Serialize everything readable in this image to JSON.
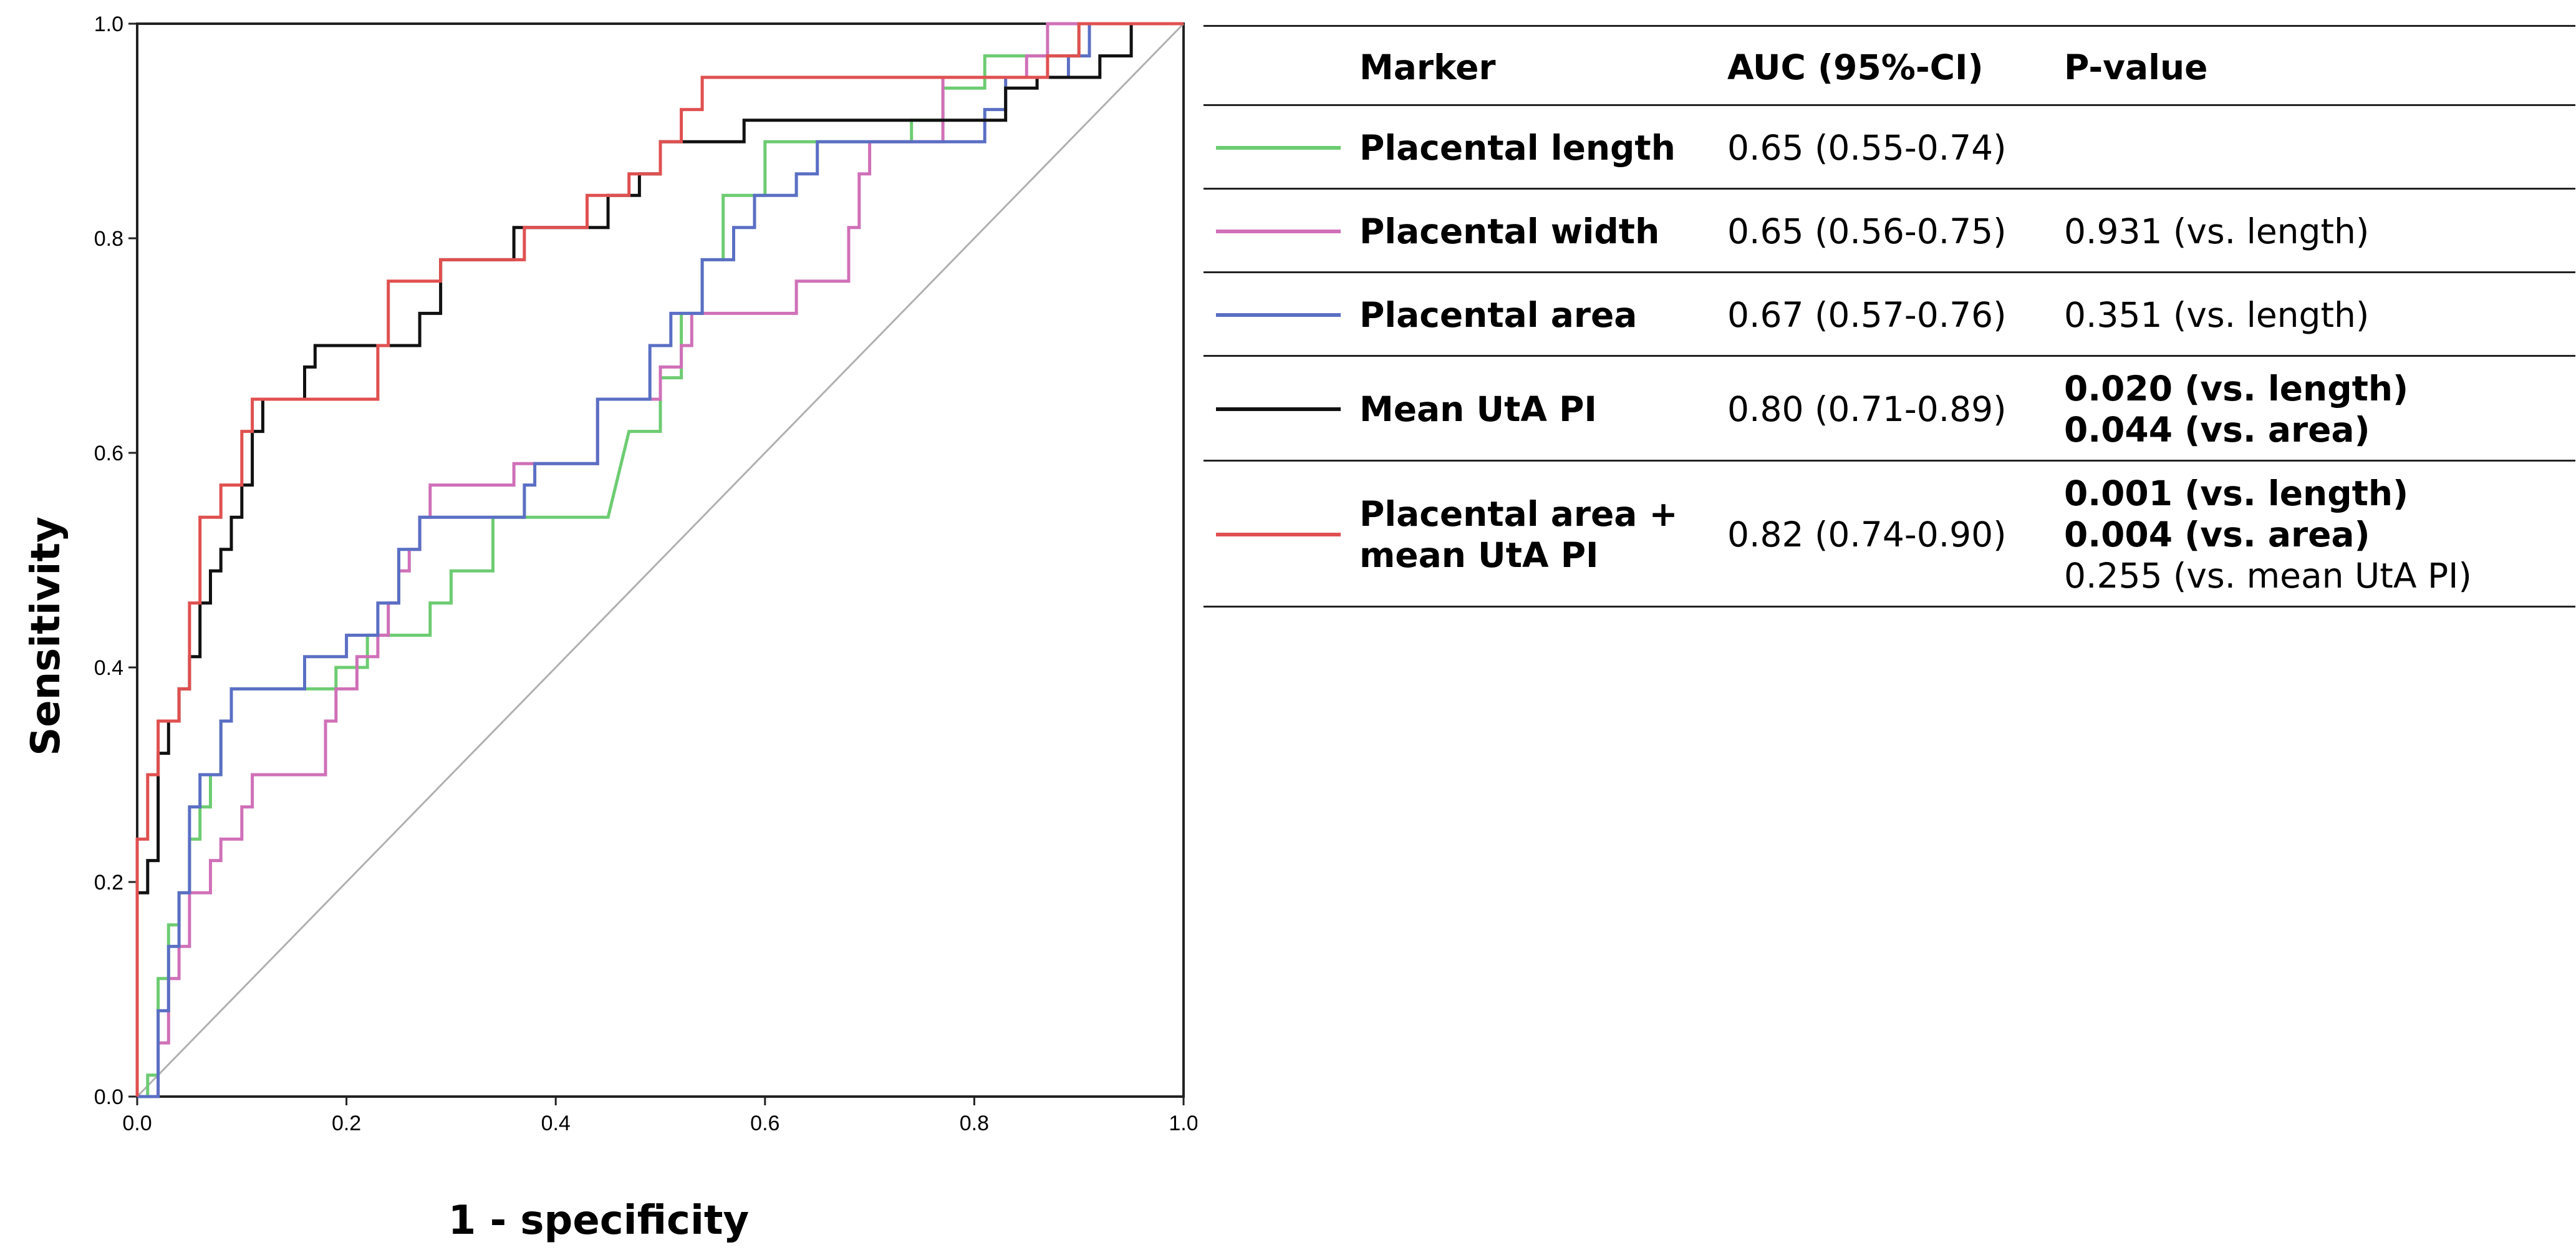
{
  "chart_data": {
    "type": "line",
    "title": "",
    "xlabel": "1 - specificity",
    "ylabel": "Sensitivity",
    "xlim": [
      0,
      1
    ],
    "ylim": [
      0,
      1
    ],
    "xticks": [
      "0.0",
      "0.2",
      "0.4",
      "0.6",
      "0.8",
      "1.0"
    ],
    "yticks": [
      "0.0",
      "0.2",
      "0.4",
      "0.6",
      "0.8",
      "1.0"
    ],
    "grid": false,
    "reference_line": {
      "x": [
        0,
        1
      ],
      "y": [
        0,
        1
      ],
      "color": "#b0b0b0"
    },
    "series": [
      {
        "name": "Placental length",
        "color": "#6dcc72",
        "points": [
          [
            0,
            0
          ],
          [
            0.01,
            0
          ],
          [
            0.01,
            0.02
          ],
          [
            0.02,
            0.02
          ],
          [
            0.02,
            0.11
          ],
          [
            0.03,
            0.11
          ],
          [
            0.03,
            0.16
          ],
          [
            0.04,
            0.16
          ],
          [
            0.04,
            0.19
          ],
          [
            0.05,
            0.19
          ],
          [
            0.05,
            0.24
          ],
          [
            0.06,
            0.24
          ],
          [
            0.06,
            0.27
          ],
          [
            0.07,
            0.27
          ],
          [
            0.07,
            0.3
          ],
          [
            0.08,
            0.3
          ],
          [
            0.08,
            0.35
          ],
          [
            0.09,
            0.35
          ],
          [
            0.09,
            0.38
          ],
          [
            0.19,
            0.38
          ],
          [
            0.19,
            0.4
          ],
          [
            0.22,
            0.4
          ],
          [
            0.22,
            0.43
          ],
          [
            0.28,
            0.43
          ],
          [
            0.28,
            0.46
          ],
          [
            0.3,
            0.46
          ],
          [
            0.3,
            0.49
          ],
          [
            0.34,
            0.49
          ],
          [
            0.34,
            0.54
          ],
          [
            0.45,
            0.54
          ],
          [
            0.47,
            0.62
          ],
          [
            0.5,
            0.62
          ],
          [
            0.5,
            0.67
          ],
          [
            0.52,
            0.67
          ],
          [
            0.52,
            0.73
          ],
          [
            0.54,
            0.73
          ],
          [
            0.54,
            0.78
          ],
          [
            0.56,
            0.78
          ],
          [
            0.56,
            0.84
          ],
          [
            0.6,
            0.84
          ],
          [
            0.6,
            0.89
          ],
          [
            0.74,
            0.89
          ],
          [
            0.74,
            0.91
          ],
          [
            0.77,
            0.91
          ],
          [
            0.77,
            0.94
          ],
          [
            0.81,
            0.94
          ],
          [
            0.81,
            0.97
          ],
          [
            0.9,
            0.97
          ],
          [
            0.9,
            1.0
          ],
          [
            1.0,
            1.0
          ]
        ]
      },
      {
        "name": "Placental width",
        "color": "#d070b8",
        "points": [
          [
            0,
            0
          ],
          [
            0.02,
            0
          ],
          [
            0.02,
            0.05
          ],
          [
            0.03,
            0.05
          ],
          [
            0.03,
            0.11
          ],
          [
            0.04,
            0.11
          ],
          [
            0.04,
            0.14
          ],
          [
            0.05,
            0.14
          ],
          [
            0.05,
            0.19
          ],
          [
            0.07,
            0.19
          ],
          [
            0.07,
            0.22
          ],
          [
            0.08,
            0.22
          ],
          [
            0.08,
            0.24
          ],
          [
            0.1,
            0.24
          ],
          [
            0.1,
            0.27
          ],
          [
            0.11,
            0.27
          ],
          [
            0.11,
            0.3
          ],
          [
            0.18,
            0.3
          ],
          [
            0.18,
            0.35
          ],
          [
            0.19,
            0.35
          ],
          [
            0.19,
            0.38
          ],
          [
            0.21,
            0.38
          ],
          [
            0.21,
            0.41
          ],
          [
            0.23,
            0.41
          ],
          [
            0.23,
            0.43
          ],
          [
            0.24,
            0.43
          ],
          [
            0.24,
            0.46
          ],
          [
            0.25,
            0.46
          ],
          [
            0.25,
            0.49
          ],
          [
            0.26,
            0.49
          ],
          [
            0.26,
            0.51
          ],
          [
            0.27,
            0.51
          ],
          [
            0.27,
            0.54
          ],
          [
            0.28,
            0.54
          ],
          [
            0.28,
            0.57
          ],
          [
            0.36,
            0.57
          ],
          [
            0.36,
            0.59
          ],
          [
            0.44,
            0.59
          ],
          [
            0.44,
            0.65
          ],
          [
            0.5,
            0.65
          ],
          [
            0.5,
            0.68
          ],
          [
            0.52,
            0.68
          ],
          [
            0.52,
            0.7
          ],
          [
            0.53,
            0.7
          ],
          [
            0.53,
            0.73
          ],
          [
            0.63,
            0.73
          ],
          [
            0.63,
            0.76
          ],
          [
            0.68,
            0.76
          ],
          [
            0.68,
            0.81
          ],
          [
            0.69,
            0.81
          ],
          [
            0.69,
            0.86
          ],
          [
            0.7,
            0.86
          ],
          [
            0.7,
            0.89
          ],
          [
            0.77,
            0.89
          ],
          [
            0.77,
            0.95
          ],
          [
            0.85,
            0.95
          ],
          [
            0.85,
            0.97
          ],
          [
            0.87,
            0.97
          ],
          [
            0.87,
            1.0
          ],
          [
            1.0,
            1.0
          ]
        ]
      },
      {
        "name": "Placental area",
        "color": "#5a6fc4",
        "points": [
          [
            0,
            0
          ],
          [
            0.02,
            0
          ],
          [
            0.02,
            0.08
          ],
          [
            0.03,
            0.08
          ],
          [
            0.03,
            0.14
          ],
          [
            0.04,
            0.14
          ],
          [
            0.04,
            0.19
          ],
          [
            0.05,
            0.19
          ],
          [
            0.05,
            0.27
          ],
          [
            0.06,
            0.27
          ],
          [
            0.06,
            0.3
          ],
          [
            0.08,
            0.3
          ],
          [
            0.08,
            0.35
          ],
          [
            0.09,
            0.35
          ],
          [
            0.09,
            0.38
          ],
          [
            0.16,
            0.38
          ],
          [
            0.16,
            0.41
          ],
          [
            0.2,
            0.41
          ],
          [
            0.2,
            0.43
          ],
          [
            0.23,
            0.43
          ],
          [
            0.23,
            0.46
          ],
          [
            0.25,
            0.46
          ],
          [
            0.25,
            0.51
          ],
          [
            0.27,
            0.51
          ],
          [
            0.27,
            0.54
          ],
          [
            0.37,
            0.54
          ],
          [
            0.37,
            0.57
          ],
          [
            0.38,
            0.57
          ],
          [
            0.38,
            0.59
          ],
          [
            0.44,
            0.59
          ],
          [
            0.44,
            0.65
          ],
          [
            0.49,
            0.65
          ],
          [
            0.49,
            0.7
          ],
          [
            0.51,
            0.7
          ],
          [
            0.51,
            0.73
          ],
          [
            0.54,
            0.73
          ],
          [
            0.54,
            0.78
          ],
          [
            0.57,
            0.78
          ],
          [
            0.57,
            0.81
          ],
          [
            0.59,
            0.81
          ],
          [
            0.59,
            0.84
          ],
          [
            0.63,
            0.84
          ],
          [
            0.63,
            0.86
          ],
          [
            0.65,
            0.86
          ],
          [
            0.65,
            0.89
          ],
          [
            0.81,
            0.89
          ],
          [
            0.81,
            0.92
          ],
          [
            0.83,
            0.92
          ],
          [
            0.83,
            0.95
          ],
          [
            0.89,
            0.95
          ],
          [
            0.89,
            0.97
          ],
          [
            0.91,
            0.97
          ],
          [
            0.91,
            1.0
          ],
          [
            1.0,
            1.0
          ]
        ]
      },
      {
        "name": "Mean UtA PI",
        "color": "#111111",
        "points": [
          [
            0,
            0
          ],
          [
            0,
            0.19
          ],
          [
            0.01,
            0.19
          ],
          [
            0.01,
            0.22
          ],
          [
            0.02,
            0.22
          ],
          [
            0.02,
            0.32
          ],
          [
            0.03,
            0.32
          ],
          [
            0.03,
            0.35
          ],
          [
            0.04,
            0.35
          ],
          [
            0.04,
            0.38
          ],
          [
            0.05,
            0.38
          ],
          [
            0.05,
            0.41
          ],
          [
            0.06,
            0.41
          ],
          [
            0.06,
            0.46
          ],
          [
            0.07,
            0.46
          ],
          [
            0.07,
            0.49
          ],
          [
            0.08,
            0.49
          ],
          [
            0.08,
            0.51
          ],
          [
            0.09,
            0.51
          ],
          [
            0.09,
            0.54
          ],
          [
            0.1,
            0.54
          ],
          [
            0.1,
            0.57
          ],
          [
            0.11,
            0.57
          ],
          [
            0.11,
            0.62
          ],
          [
            0.12,
            0.62
          ],
          [
            0.12,
            0.65
          ],
          [
            0.16,
            0.65
          ],
          [
            0.16,
            0.68
          ],
          [
            0.17,
            0.68
          ],
          [
            0.17,
            0.7
          ],
          [
            0.27,
            0.7
          ],
          [
            0.27,
            0.73
          ],
          [
            0.29,
            0.73
          ],
          [
            0.29,
            0.78
          ],
          [
            0.36,
            0.78
          ],
          [
            0.36,
            0.81
          ],
          [
            0.45,
            0.81
          ],
          [
            0.45,
            0.84
          ],
          [
            0.48,
            0.84
          ],
          [
            0.48,
            0.86
          ],
          [
            0.5,
            0.86
          ],
          [
            0.5,
            0.89
          ],
          [
            0.58,
            0.89
          ],
          [
            0.58,
            0.91
          ],
          [
            0.83,
            0.91
          ],
          [
            0.83,
            0.94
          ],
          [
            0.86,
            0.94
          ],
          [
            0.86,
            0.95
          ],
          [
            0.92,
            0.95
          ],
          [
            0.92,
            0.97
          ],
          [
            0.95,
            0.97
          ],
          [
            0.95,
            1.0
          ],
          [
            1.0,
            1.0
          ]
        ]
      },
      {
        "name": "Placental area + mean UtA PI",
        "color": "#e05050",
        "points": [
          [
            0,
            0
          ],
          [
            0,
            0.24
          ],
          [
            0.01,
            0.24
          ],
          [
            0.01,
            0.3
          ],
          [
            0.02,
            0.3
          ],
          [
            0.02,
            0.35
          ],
          [
            0.04,
            0.35
          ],
          [
            0.04,
            0.38
          ],
          [
            0.05,
            0.38
          ],
          [
            0.05,
            0.46
          ],
          [
            0.06,
            0.46
          ],
          [
            0.06,
            0.54
          ],
          [
            0.08,
            0.54
          ],
          [
            0.08,
            0.57
          ],
          [
            0.1,
            0.57
          ],
          [
            0.1,
            0.62
          ],
          [
            0.11,
            0.62
          ],
          [
            0.11,
            0.65
          ],
          [
            0.23,
            0.65
          ],
          [
            0.23,
            0.7
          ],
          [
            0.24,
            0.7
          ],
          [
            0.24,
            0.76
          ],
          [
            0.29,
            0.76
          ],
          [
            0.29,
            0.78
          ],
          [
            0.37,
            0.78
          ],
          [
            0.37,
            0.81
          ],
          [
            0.43,
            0.81
          ],
          [
            0.43,
            0.84
          ],
          [
            0.47,
            0.84
          ],
          [
            0.47,
            0.86
          ],
          [
            0.5,
            0.86
          ],
          [
            0.5,
            0.89
          ],
          [
            0.52,
            0.89
          ],
          [
            0.52,
            0.92
          ],
          [
            0.54,
            0.92
          ],
          [
            0.54,
            0.95
          ],
          [
            0.87,
            0.95
          ],
          [
            0.87,
            0.97
          ],
          [
            0.9,
            0.97
          ],
          [
            0.9,
            1.0
          ],
          [
            1.0,
            1.0
          ]
        ]
      }
    ]
  },
  "table": {
    "header": {
      "marker": "Marker",
      "auc": "AUC (95%-CI)",
      "p": "P-value"
    },
    "rows": [
      {
        "color": "#6dcc72",
        "marker": [
          "Placental length"
        ],
        "auc": "0.65 (0.55-0.74)",
        "p": []
      },
      {
        "color": "#d070b8",
        "marker": [
          "Placental width"
        ],
        "auc": "0.65 (0.56-0.75)",
        "p": [
          {
            "text": "0.931 (vs. length)",
            "bold": false
          }
        ]
      },
      {
        "color": "#5a6fc4",
        "marker": [
          "Placental area"
        ],
        "auc": "0.67 (0.57-0.76)",
        "p": [
          {
            "text": "0.351 (vs. length)",
            "bold": false
          }
        ]
      },
      {
        "color": "#111111",
        "marker": [
          "Mean UtA PI"
        ],
        "auc": "0.80 (0.71-0.89)",
        "p": [
          {
            "text": "0.020 (vs. length)",
            "bold": true
          },
          {
            "text": "0.044 (vs. area)",
            "bold": true
          }
        ]
      },
      {
        "color": "#e05050",
        "marker": [
          "Placental area +",
          "mean UtA PI"
        ],
        "auc": "0.82 (0.74-0.90)",
        "p": [
          {
            "text": "0.001 (vs. length)",
            "bold": true
          },
          {
            "text": "0.004 (vs. area)",
            "bold": true
          },
          {
            "text": "0.255 (vs. mean UtA PI)",
            "bold": false
          }
        ]
      }
    ]
  }
}
